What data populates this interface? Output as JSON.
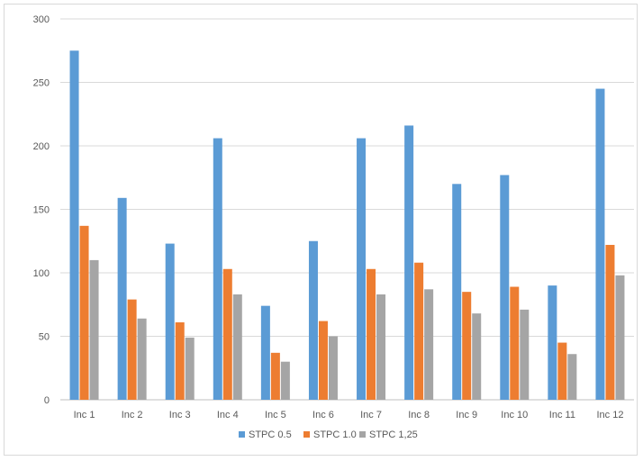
{
  "chart_data": {
    "type": "bar",
    "title": "",
    "xlabel": "",
    "ylabel": "",
    "categories": [
      "Inc 1",
      "Inc 2",
      "Inc 3",
      "Inc 4",
      "Inc 5",
      "Inc 6",
      "Inc 7",
      "Inc 8",
      "Inc 9",
      "Inc 10",
      "Inc 11",
      "Inc 12"
    ],
    "series": [
      {
        "name": "STPC 0.5",
        "color": "#5b9bd5",
        "values": [
          275,
          159,
          123,
          206,
          74,
          125,
          206,
          216,
          170,
          177,
          90,
          245
        ]
      },
      {
        "name": "STPC 1.0",
        "color": "#ed7d31",
        "values": [
          137,
          79,
          61,
          103,
          37,
          62,
          103,
          108,
          85,
          89,
          45,
          122
        ]
      },
      {
        "name": "STPC 1,25",
        "color": "#a5a5a5",
        "values": [
          110,
          64,
          49,
          83,
          30,
          50,
          83,
          87,
          68,
          71,
          36,
          98
        ]
      }
    ],
    "ylim": [
      0,
      300
    ],
    "yticks": [
      "0",
      "50",
      "100",
      "150",
      "200",
      "250",
      "300"
    ],
    "grid": true,
    "legend_position": "bottom"
  }
}
